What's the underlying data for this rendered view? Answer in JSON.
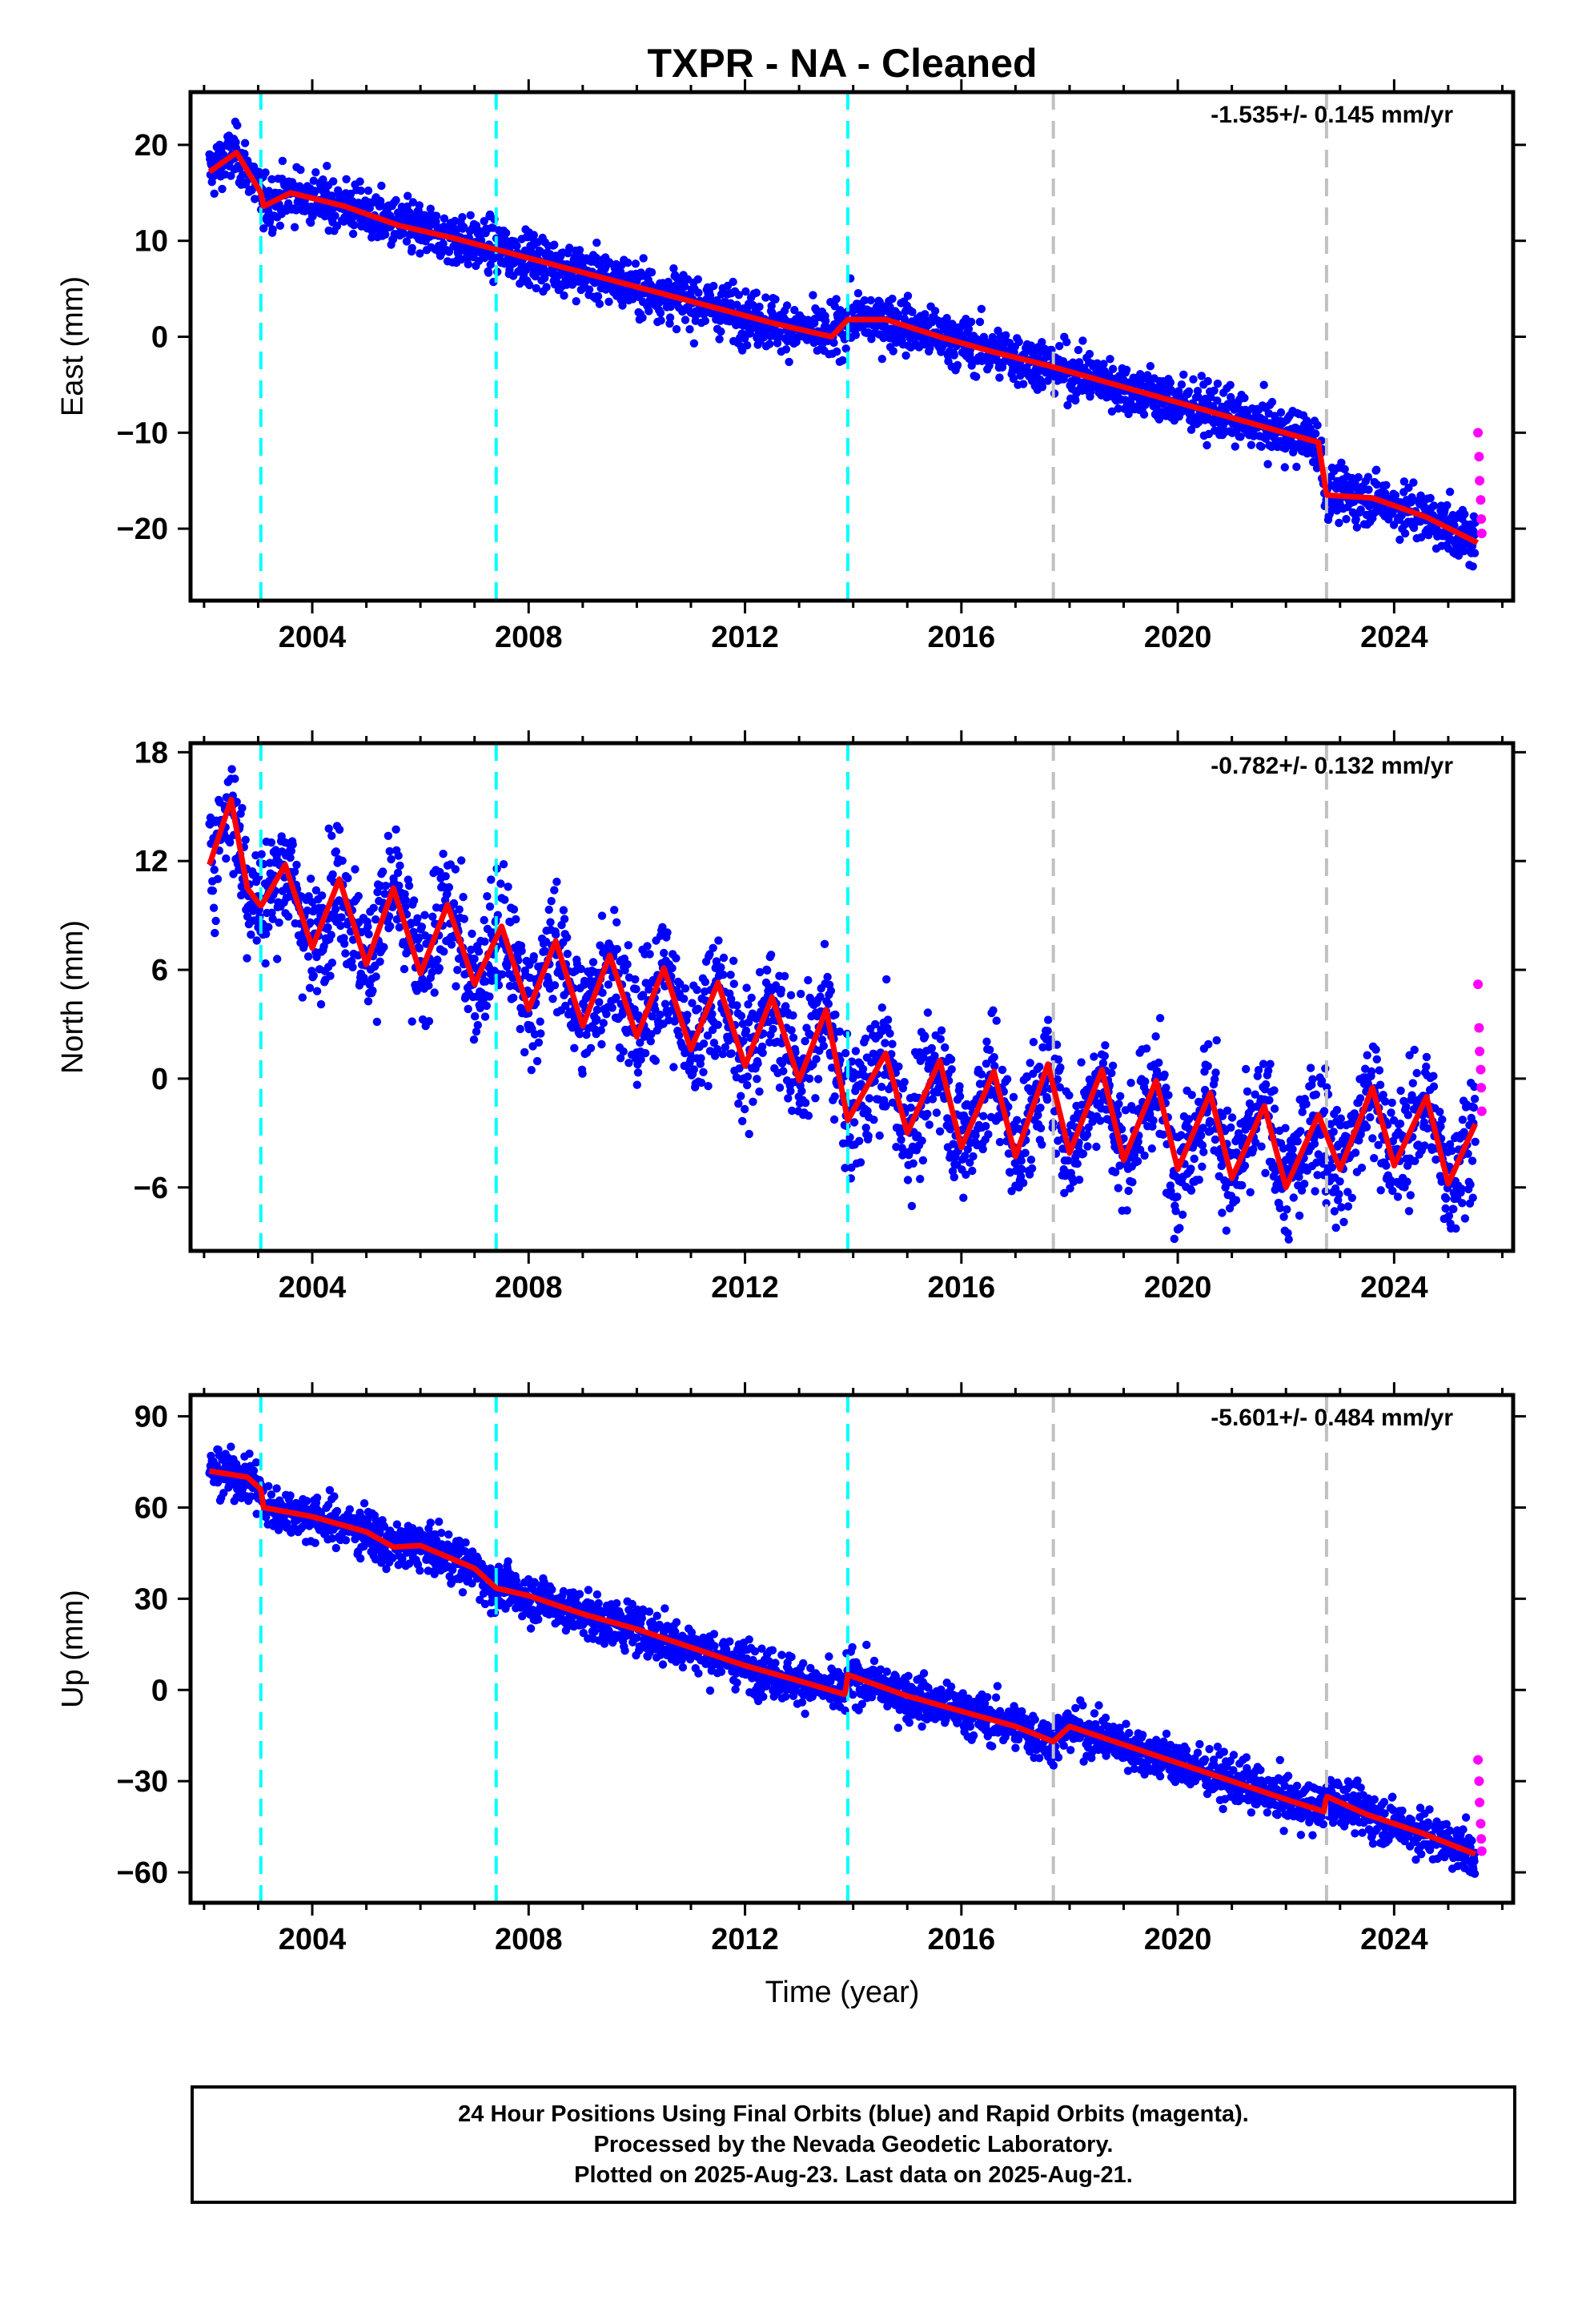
{
  "title": "TXPR  - NA - Cleaned",
  "xlabel": "Time (year)",
  "footer": {
    "line1": "24 Hour Positions Using Final Orbits (blue) and Rapid Orbits (magenta).",
    "line2": "Processed by the Nevada Geodetic Laboratory.",
    "line3": "Plotted on 2025-Aug-23. Last data on 2025-Aug-21."
  },
  "colors": {
    "final_orbits": "#0000ff",
    "rapid_orbits": "#ff00ff",
    "model": "#ff0000",
    "equipment_change": "#00ffff",
    "earthquake": "#c0c0c0"
  },
  "chart_data": [
    {
      "type": "scatter",
      "ylabel": "East (mm)",
      "rate_label": "-1.535+/- 0.145 mm/yr",
      "xlim": [
        2001.75,
        2026.2
      ],
      "ylim": [
        -27.5,
        25.5
      ],
      "xticks": [
        2004,
        2008,
        2012,
        2016,
        2020,
        2024
      ],
      "yticks": [
        -20,
        -10,
        0,
        10,
        20
      ],
      "cyan_lines": [
        2003.05,
        2007.4,
        2013.9
      ],
      "gray_lines": [
        2017.7,
        2022.75
      ],
      "model": {
        "x": [
          2002.1,
          2002.6,
          2003.05,
          2003.1,
          2003.6,
          2004.6,
          2005.6,
          2006.6,
          2007.6,
          2008.6,
          2009.6,
          2010.6,
          2011.6,
          2012.6,
          2013.6,
          2013.9,
          2014.6,
          2015.6,
          2016.6,
          2017.6,
          2018.6,
          2019.6,
          2020.6,
          2021.6,
          2022.6,
          2022.75,
          2023.6,
          2024.6,
          2025.55
        ],
        "y": [
          17.2,
          19.2,
          15.0,
          13.6,
          15.0,
          13.6,
          11.6,
          10.3,
          8.8,
          7.3,
          5.8,
          4.3,
          2.8,
          1.3,
          0.0,
          1.8,
          1.8,
          0.0,
          -1.6,
          -3.0,
          -4.6,
          -6.2,
          -7.8,
          -9.4,
          -11.0,
          -16.5,
          -16.8,
          -18.8,
          -21.5
        ]
      },
      "final_orbits": {
        "x_range": [
          2002.1,
          2025.5
        ],
        "trend_y": [
          17.0,
          -23.5
        ],
        "scatter_mm": 1.6
      },
      "rapid_orbits": {
        "x": [
          2025.55,
          2025.57,
          2025.58,
          2025.6,
          2025.61,
          2025.62
        ],
        "y": [
          -10.0,
          -12.5,
          -15.0,
          -17.0,
          -19.0,
          -20.5
        ]
      }
    },
    {
      "type": "scatter",
      "ylabel": "North (mm)",
      "rate_label": "-0.782+/- 0.132 mm/yr",
      "xlim": [
        2001.75,
        2026.2
      ],
      "ylim": [
        -9.5,
        18.5
      ],
      "xticks": [
        2004,
        2008,
        2012,
        2016,
        2020,
        2024
      ],
      "yticks": [
        -6,
        0,
        6,
        12,
        18
      ],
      "cyan_lines": [
        2003.05,
        2007.4,
        2013.9
      ],
      "gray_lines": [
        2017.7,
        2022.75
      ],
      "model": {
        "x": [
          2002.1,
          2002.5,
          2002.8,
          2003.05,
          2003.5,
          2004.0,
          2004.5,
          2005.0,
          2005.5,
          2006.0,
          2006.5,
          2007.0,
          2007.5,
          2008.0,
          2008.5,
          2009.0,
          2009.5,
          2010.0,
          2010.5,
          2011.0,
          2011.5,
          2012.0,
          2012.5,
          2013.0,
          2013.5,
          2013.9,
          2014.6,
          2015.0,
          2015.6,
          2016.0,
          2016.6,
          2017.0,
          2017.6,
          2018.0,
          2018.6,
          2019.0,
          2019.6,
          2020.0,
          2020.6,
          2021.0,
          2021.6,
          2022.0,
          2022.6,
          2023.0,
          2023.6,
          2024.0,
          2024.6,
          2025.0,
          2025.5
        ],
        "y": [
          11.8,
          15.4,
          10.5,
          9.5,
          11.8,
          7.2,
          11.0,
          6.3,
          10.5,
          5.8,
          9.6,
          5.2,
          8.4,
          3.8,
          7.6,
          2.9,
          6.8,
          2.3,
          6.1,
          1.6,
          5.3,
          0.7,
          4.5,
          -0.1,
          3.8,
          -2.3,
          1.4,
          -3.0,
          1.0,
          -3.8,
          0.4,
          -4.3,
          0.8,
          -4.1,
          0.5,
          -4.5,
          -0.1,
          -5.0,
          -0.8,
          -5.5,
          -1.5,
          -6.0,
          -2.0,
          -5.0,
          -0.5,
          -4.8,
          -1.0,
          -5.8,
          -2.5
        ]
      },
      "final_orbits": {
        "x_range": [
          2002.1,
          2025.5
        ],
        "trend_y": [
          12.0,
          -3.0
        ],
        "scatter_mm": 2.0
      },
      "rapid_orbits": {
        "x": [
          2025.55,
          2025.57,
          2025.58,
          2025.6,
          2025.61,
          2025.62
        ],
        "y": [
          5.2,
          2.8,
          1.5,
          0.5,
          -0.5,
          -1.8
        ]
      }
    },
    {
      "type": "scatter",
      "ylabel": "Up (mm)",
      "rate_label": "-5.601+/- 0.484 mm/yr",
      "xlim": [
        2001.75,
        2026.2
      ],
      "ylim": [
        -70,
        97
      ],
      "xticks": [
        2004,
        2008,
        2012,
        2016,
        2020,
        2024
      ],
      "yticks": [
        -60,
        -30,
        0,
        30,
        60,
        90
      ],
      "cyan_lines": [
        2003.05,
        2007.4,
        2013.9
      ],
      "gray_lines": [
        2017.7,
        2022.75
      ],
      "model": {
        "x": [
          2002.1,
          2002.8,
          2003.05,
          2003.1,
          2004.0,
          2005.0,
          2005.5,
          2006.0,
          2007.0,
          2007.4,
          2008.0,
          2009.0,
          2010.0,
          2011.0,
          2012.0,
          2013.0,
          2013.85,
          2013.9,
          2015.0,
          2016.0,
          2017.0,
          2017.7,
          2018.0,
          2019.0,
          2020.0,
          2021.0,
          2022.0,
          2022.7,
          2022.75,
          2023.5,
          2024.5,
          2025.5
        ],
        "y": [
          72.0,
          70.0,
          66.0,
          60.0,
          57.0,
          52.0,
          47.0,
          47.5,
          40.0,
          33.5,
          31.0,
          25.0,
          20.0,
          14.0,
          8.0,
          3.0,
          -1.5,
          5.0,
          -2.0,
          -7.0,
          -12.0,
          -17.0,
          -12.0,
          -18.0,
          -24.0,
          -30.0,
          -36.0,
          -40.0,
          -35.0,
          -41.0,
          -47.0,
          -54.0
        ]
      },
      "final_orbits": {
        "x_range": [
          2002.1,
          2025.5
        ],
        "trend_y": [
          72.0,
          -57.0
        ],
        "scatter_mm": 4.5
      },
      "rapid_orbits": {
        "x": [
          2025.55,
          2025.57,
          2025.58,
          2025.6,
          2025.61,
          2025.62
        ],
        "y": [
          -23.0,
          -30.0,
          -37.0,
          -44.0,
          -49.0,
          -53.0
        ]
      }
    }
  ]
}
